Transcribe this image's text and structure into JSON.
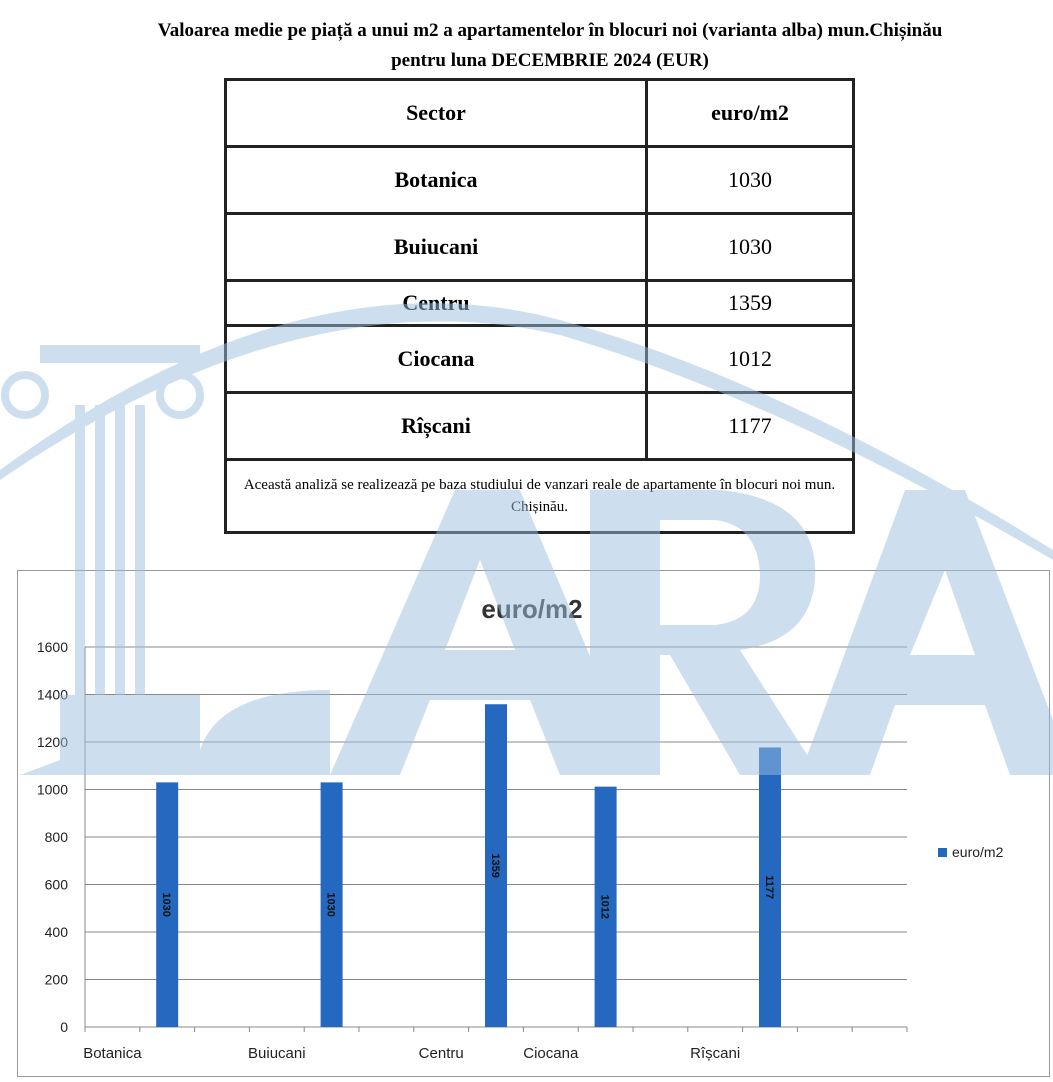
{
  "document": {
    "title_line1": "Valoarea medie pe piață a unui m2 a apartamentelor în blocuri noi (varianta alba) mun.Chișinău",
    "title_line2": "pentru luna DECEMBRIE 2024 (EUR)"
  },
  "table": {
    "headers": [
      "Sector",
      "euro/m2"
    ],
    "rows": [
      {
        "sector": "Botanica",
        "value": "1030"
      },
      {
        "sector": "Buiucani",
        "value": "1030"
      },
      {
        "sector": "Centru",
        "value": "1359"
      },
      {
        "sector": "Ciocana",
        "value": "1012"
      },
      {
        "sector": "Rîșcani",
        "value": "1177"
      }
    ],
    "note": "Această analiză se realizează pe baza studiului de vanzari reale de apartamente în blocuri noi mun. Chișinău."
  },
  "watermark": {
    "text": "LARA",
    "color": "#9cc0e0"
  },
  "chart_data": {
    "type": "bar",
    "title": "euro/m2",
    "categories": [
      "Botanica",
      "",
      "",
      "Buiucani",
      "",
      "",
      "Centru",
      "",
      "Ciocana",
      "",
      "",
      "Rîșcani",
      "",
      "",
      ""
    ],
    "series": [
      {
        "name": "euro/m2",
        "color": "#2468c0",
        "values": [
          null,
          1030,
          null,
          null,
          1030,
          null,
          null,
          1359,
          null,
          1012,
          null,
          null,
          1177,
          null,
          null
        ],
        "labels": [
          "",
          "1030",
          "",
          "",
          "1030",
          "",
          "",
          "1359",
          "",
          "1012",
          "",
          "",
          "1177",
          "",
          ""
        ]
      }
    ],
    "ylim": [
      0,
      1600
    ],
    "yticks": [
      0,
      200,
      400,
      600,
      800,
      1000,
      1200,
      1400,
      1600
    ],
    "grid": true,
    "legend": "right"
  }
}
